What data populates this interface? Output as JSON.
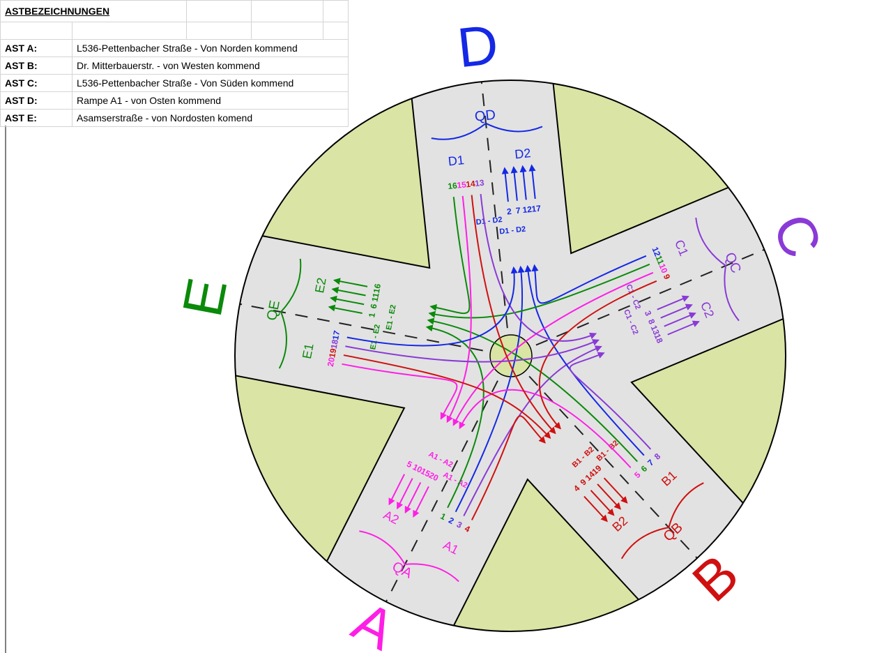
{
  "table": {
    "title": "ASTBEZEICHNUNGEN",
    "rows": [
      [
        "AST A:",
        "L536-Pettenbacher Straße - Von Norden kommend"
      ],
      [
        "AST B:",
        "Dr. Mitterbauerstr. - von Westen kommend"
      ],
      [
        "AST C:",
        "L536-Pettenbacher Straße - Von Süden kommend"
      ],
      [
        "AST D:",
        "Rampe A1 - von Osten kommend"
      ],
      [
        "AST E:",
        "Asamserstraße - von Nordosten komend"
      ]
    ]
  },
  "arms": [
    {
      "name": "A",
      "color": "#ff1ee6",
      "queue": "QA",
      "lanes": [
        "A1",
        "A2"
      ],
      "groups": [
        "A1 - A2",
        "A1 - A2"
      ],
      "in_streams": [
        1,
        2,
        3,
        4
      ],
      "out_streams": [
        20,
        15,
        10,
        5
      ]
    },
    {
      "name": "B",
      "color": "#d01010",
      "queue": "QB",
      "lanes": [
        "B1",
        "B2"
      ],
      "groups": [
        "B1 - B2",
        "B1 - B2"
      ],
      "in_streams": [
        5,
        6,
        7,
        8
      ],
      "out_streams": [
        19,
        14,
        9,
        4
      ]
    },
    {
      "name": "C",
      "color": "#8a3ad6",
      "queue": "QC",
      "lanes": [
        "C1",
        "C2"
      ],
      "groups": [
        "C1 - C2",
        "C1 - C2"
      ],
      "in_streams": [
        9,
        10,
        11,
        12
      ],
      "out_streams": [
        3,
        8,
        13,
        18
      ]
    },
    {
      "name": "D",
      "color": "#1428e6",
      "queue": "QD",
      "lanes": [
        "D1",
        "D2"
      ],
      "groups": [
        "D1 - D2",
        "D1 - D2"
      ],
      "in_streams": [
        13,
        14,
        15,
        16
      ],
      "out_streams": [
        2,
        7,
        12,
        17
      ]
    },
    {
      "name": "E",
      "color": "#0a8a0a",
      "queue": "QE",
      "lanes": [
        "E1",
        "E2"
      ],
      "groups": [
        "E1 - E2",
        "E1 - E2"
      ],
      "in_streams": [
        17,
        18,
        19,
        20
      ],
      "out_streams": [
        1,
        6,
        11,
        16
      ]
    }
  ]
}
